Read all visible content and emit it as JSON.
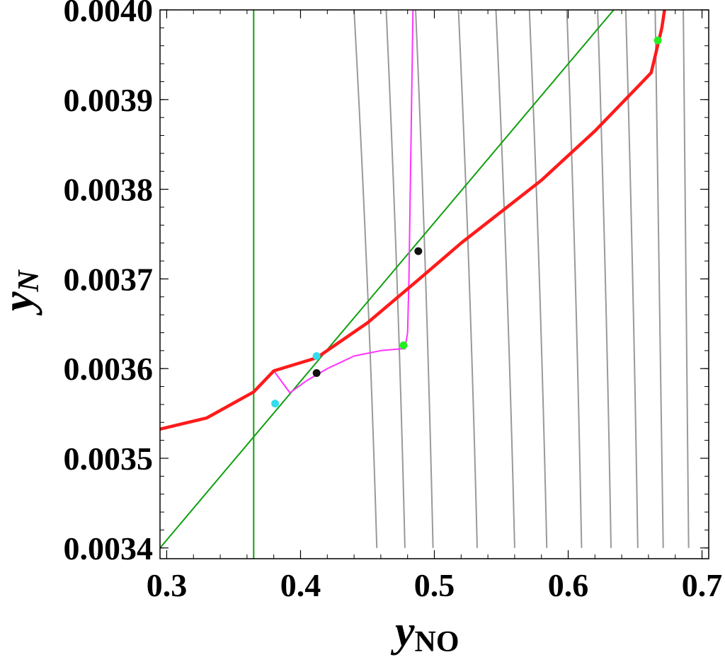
{
  "chart_data": {
    "type": "line",
    "title": "",
    "xlabel": {
      "main": "y",
      "sub": "NO"
    },
    "ylabel": {
      "main": "y",
      "sub": "N"
    },
    "xlim": [
      0.295,
      0.705
    ],
    "ylim": [
      0.003388,
      0.004
    ],
    "x_ticks": [
      0.3,
      0.4,
      0.5,
      0.6,
      0.7
    ],
    "x_tick_labels": [
      "0.3",
      "0.4",
      "0.5",
      "0.6",
      "0.7"
    ],
    "y_ticks": [
      0.0034,
      0.0035,
      0.0036,
      0.0037,
      0.0038,
      0.0039,
      0.004
    ],
    "y_tick_labels": [
      "0.0034",
      "0.0035",
      "0.0036",
      "0.0037",
      "0.0038",
      "0.0039",
      "0.0040"
    ],
    "grid": false,
    "legend": "none",
    "colors": {
      "red_curve": "#ff1a1a",
      "magenta_curve": "#ff33ff",
      "green_line": "#0fa00f",
      "gray_curves": "#999999",
      "cyan_points": "#33ddee",
      "green_points": "#22ee22",
      "black_points": "#111111"
    },
    "series": [
      {
        "kind": "red-curve",
        "points": [
          [
            0.295,
            0.0035325
          ],
          [
            0.33,
            0.003545
          ],
          [
            0.365,
            0.003574
          ],
          [
            0.38,
            0.0035975
          ],
          [
            0.412,
            0.003612
          ],
          [
            0.45,
            0.003651
          ],
          [
            0.488,
            0.003699
          ],
          [
            0.52,
            0.00374
          ],
          [
            0.58,
            0.00381
          ],
          [
            0.62,
            0.003865
          ],
          [
            0.655,
            0.003919
          ],
          [
            0.662,
            0.00393
          ],
          [
            0.666,
            0.003955
          ],
          [
            0.67,
            0.00398
          ],
          [
            0.672,
            0.004
          ]
        ]
      },
      {
        "kind": "magenta-curve",
        "points": [
          [
            0.38,
            0.0035975
          ],
          [
            0.392,
            0.003573
          ],
          [
            0.405,
            0.003587
          ],
          [
            0.42,
            0.0036
          ],
          [
            0.44,
            0.003614
          ],
          [
            0.46,
            0.00362
          ],
          [
            0.475,
            0.003622
          ],
          [
            0.478,
            0.003622
          ],
          [
            0.48,
            0.00364
          ],
          [
            0.481,
            0.0037
          ],
          [
            0.482,
            0.0038
          ],
          [
            0.483,
            0.0039
          ],
          [
            0.484,
            0.004
          ]
        ]
      },
      {
        "kind": "green-diagonal-line",
        "points": [
          [
            0.295,
            0.0034
          ],
          [
            0.634,
            0.004
          ]
        ]
      },
      {
        "kind": "green-vertical-line",
        "points": [
          [
            0.365,
            0.003388
          ],
          [
            0.365,
            0.004
          ]
        ]
      }
    ],
    "gray_contours": [
      {
        "x_bottom": 0.457,
        "x_top": 0.44
      },
      {
        "x_bottom": 0.478,
        "x_top": 0.464
      },
      {
        "x_bottom": 0.499,
        "x_top": 0.486
      },
      {
        "x_bottom": 0.532,
        "x_top": 0.518
      },
      {
        "x_bottom": 0.56,
        "x_top": 0.546
      },
      {
        "x_bottom": 0.584,
        "x_top": 0.571
      },
      {
        "x_bottom": 0.61,
        "x_top": 0.599
      },
      {
        "x_bottom": 0.632,
        "x_top": 0.622
      },
      {
        "x_bottom": 0.652,
        "x_top": 0.643
      },
      {
        "x_bottom": 0.671,
        "x_top": 0.665
      },
      {
        "x_bottom": 0.69,
        "x_top": 0.686
      }
    ],
    "gray_contour_y_range": [
      0.0034,
      0.004
    ],
    "points": [
      {
        "kind": "cyan",
        "x": 0.381,
        "y": 0.003561
      },
      {
        "kind": "cyan",
        "x": 0.412,
        "y": 0.003614
      },
      {
        "kind": "black",
        "x": 0.412,
        "y": 0.003595
      },
      {
        "kind": "black",
        "x": 0.488,
        "y": 0.003731
      },
      {
        "kind": "green",
        "x": 0.477,
        "y": 0.003626
      },
      {
        "kind": "green",
        "x": 0.667,
        "y": 0.003966
      }
    ]
  }
}
